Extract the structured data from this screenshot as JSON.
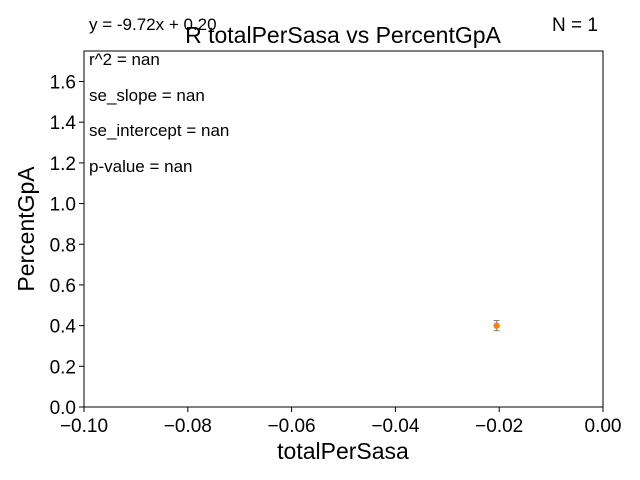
{
  "chart_data": {
    "type": "scatter",
    "title": "R totalPerSasa vs PercentGpA",
    "xlabel": "totalPerSasa",
    "ylabel": "PercentGpA",
    "xlim": [
      -0.1,
      0.0
    ],
    "ylim": [
      0.0,
      1.75
    ],
    "x_ticks": [
      -0.1,
      -0.08,
      -0.06,
      -0.04,
      -0.02,
      0.0
    ],
    "x_tick_labels": [
      "−0.10",
      "−0.08",
      "−0.06",
      "−0.04",
      "−0.02",
      "0.00"
    ],
    "y_ticks": [
      0.0,
      0.2,
      0.4,
      0.6,
      0.8,
      1.0,
      1.2,
      1.4,
      1.6
    ],
    "y_tick_labels": [
      "0.0",
      "0.2",
      "0.4",
      "0.6",
      "0.8",
      "1.0",
      "1.2",
      "1.4",
      "1.6"
    ],
    "grid": false,
    "points": [
      {
        "x": -0.0205,
        "y": 0.4,
        "y_err": 0.025,
        "color": "#ff7f0e"
      }
    ],
    "errorbar_color": "#7f7f7f",
    "annotations": {
      "equation": "y = -9.72x + 0.20",
      "n": "N = 1",
      "r2": "r^2 = nan",
      "se_slope": "se_slope = nan",
      "se_intercept": "se_intercept = nan",
      "p_value": "p-value = nan"
    }
  }
}
